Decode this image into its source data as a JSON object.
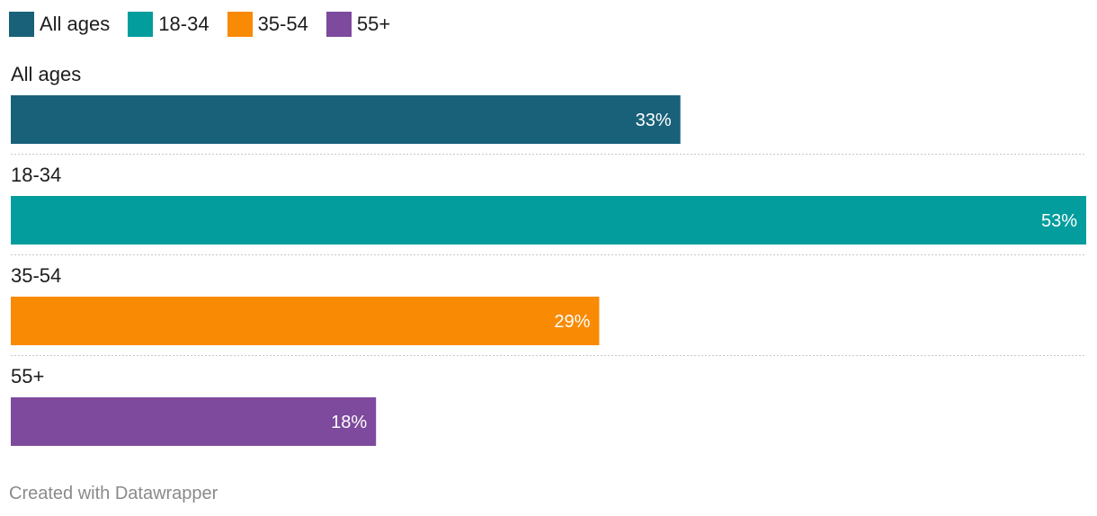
{
  "chart_data": {
    "type": "bar",
    "orientation": "horizontal",
    "categories": [
      "All ages",
      "18-34",
      "35-54",
      "55+"
    ],
    "values": [
      33,
      53,
      29,
      18
    ],
    "value_labels": [
      "33%",
      "53%",
      "29%",
      "18%"
    ],
    "colors": [
      "#186179",
      "#039d9d",
      "#f98a03",
      "#7d4a9d"
    ],
    "legend": {
      "placement": "top-left",
      "entries": [
        "All ages",
        "18-34",
        "35-54",
        "55+"
      ]
    },
    "xlim": [
      0,
      53
    ],
    "grid": false
  },
  "footer": {
    "credit": "Created with Datawrapper"
  }
}
